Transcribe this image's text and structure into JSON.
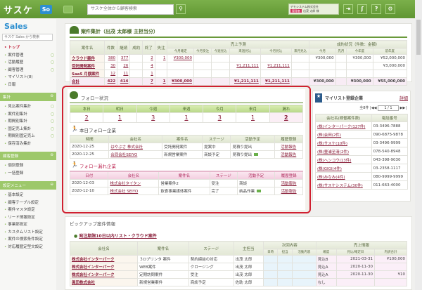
{
  "header": {
    "logo": "サスケ",
    "app_badge": "So",
    "search_placeholder": "サスケ全体から顧客検索",
    "company": "デモシステム株式会社",
    "role_badge": "管理者",
    "user": "出茂 太郎 様",
    "icons": [
      "chat-icon",
      "search-icon",
      "logout-icon",
      "sasuke-icon",
      "help-icon",
      "gear-icon"
    ],
    "help": "?",
    "brand": "#6a9e3a"
  },
  "sidebar": {
    "logo": "Sales",
    "logo_sub": "サスケ セールス",
    "search_placeholder": "サスケ Sales から検索",
    "main_items": [
      {
        "label": "トップ",
        "active": true
      },
      {
        "label": "案件管理",
        "plus": true
      },
      {
        "label": "活動履歴",
        "plus": true
      },
      {
        "label": "顧客管理",
        "plus": true
      },
      {
        "label": "マイリスト(8)"
      },
      {
        "label": "日報"
      }
    ],
    "sections": [
      {
        "title": "集計",
        "items": [
          "見込案件集計",
          "案件別集計",
          "期間別集計",
          "固定売上集計",
          "期間別固定売上",
          "保存済み集計"
        ],
        "plus": [
          true,
          true,
          true,
          true,
          true,
          false
        ]
      },
      {
        "title": "顧客登録",
        "items": [
          "個別登録",
          "一括登録"
        ],
        "plus": [
          false,
          false
        ]
      },
      {
        "title": "設定メニュー",
        "items": [
          "基本設定",
          "顧客テーブル設定",
          "案件マスタ設定",
          "リード情報設定",
          "事業部設定",
          "カスタムリスト設定",
          "案件の検索条件設定",
          "対応履歴定型文設定"
        ],
        "plus": [
          false,
          false,
          false,
          false,
          false,
          false,
          false,
          false
        ]
      }
    ]
  },
  "summary": {
    "title": "案件集計（出茂 太郎様 主担当分）",
    "headers": [
      "案件名",
      "件数",
      "継続",
      "成約",
      "終了",
      "失注"
    ],
    "group_forecast": "売上予測",
    "group_result": "成約状況（件数：金額）",
    "sub_headers": [
      "今月確定",
      "今月受注",
      "今週見込",
      "来週見込",
      "今月見込",
      "来月見込",
      "今月",
      "先月",
      "今年度",
      "前年度"
    ],
    "rows": [
      [
        "クラウド案件",
        "380",
        "377",
        "",
        "2",
        "1",
        "¥300,000",
        "",
        "",
        "",
        "",
        "",
        "¥300,000",
        "",
        "¥300,000",
        "¥52,000,000"
      ],
      [
        "受託開発案件",
        "30",
        "26",
        "",
        "4",
        "",
        "",
        "",
        "",
        "¥1,211,111",
        "¥1,211,111",
        "",
        "",
        "",
        "",
        "¥3,000,000"
      ],
      [
        "SaaS 月額案件",
        "12",
        "11",
        "",
        "1",
        "",
        "",
        "",
        "",
        "",
        "",
        "",
        "",
        "",
        "",
        ""
      ],
      [
        "合計",
        "422",
        "414",
        "",
        "7",
        "1",
        "¥300,000",
        "",
        "",
        "¥1,211,111",
        "¥1,211,111",
        "",
        "¥300,000",
        "",
        "¥300,000",
        "¥55,000,000"
      ]
    ]
  },
  "follow": {
    "title": "フォロー状況",
    "periods": [
      "本日",
      "明日",
      "今週",
      "来週",
      "今月",
      "来月",
      "漏れ"
    ],
    "counts": [
      "2",
      "1",
      "3",
      "1",
      "3",
      "1",
      "2"
    ],
    "today": {
      "title": "本日フォロー企業",
      "headers": [
        "時間",
        "会社名",
        "案件名",
        "ステージ",
        "活動予定",
        "履歴登録"
      ],
      "rows": [
        [
          "2020-12-25",
          "はやぶさ 株式会社",
          "受託開発案件",
          "提案中",
          "見積り提出",
          "活動報告"
        ],
        [
          "2020-12-25",
          "合同会社SEIYO",
          "新規営業案件",
          "商談予定",
          "見積り提出",
          "活動報告"
        ]
      ]
    },
    "missed": {
      "title": "フォロー漏れ企業",
      "headers": [
        "日付",
        "会社名",
        "案件名",
        "ステージ",
        "活動予定",
        "履歴登録"
      ],
      "rows": [
        [
          "2020-12-03",
          "株式会社タイタン",
          "営業案件2",
          "受注",
          "商談",
          "活動報告"
        ],
        [
          "2020-12-10",
          "株式会社 SEIYO",
          "飲食事業媒体案件",
          "完了",
          "納品作業",
          "活動報告"
        ]
      ]
    }
  },
  "mylist": {
    "title": "マイリスト登録企業",
    "detail": "詳細",
    "total": "全8件",
    "page": "1 / 1",
    "headers": [
      "会社名(稼働案件数)",
      "電話番号"
    ],
    "rows": [
      [
        "(株)インターパーク(127件)",
        "03-3496-7888"
      ],
      [
        "(株)会田(2件)",
        "090-6875-9878"
      ],
      [
        "(株)サスケ(10件)",
        "03-3496-9999"
      ],
      [
        "(株)豊浦至清(2件)",
        "078-540-8948"
      ],
      [
        "(株)ヘンコウ(13件)",
        "043-398-9030"
      ],
      [
        "(株)GIGI(4件)",
        "03-2358-1117"
      ],
      [
        "(株)みなみ(4件)",
        "080-9999-9999"
      ],
      [
        "(株)サスケシステム(30件)",
        "011-663-4000"
      ]
    ]
  },
  "pickup": {
    "title": "ピックアップ案件情報",
    "list_title": "発注期限10日以内リスト・クラウド案件",
    "headers": [
      "会社名",
      "案件名",
      "ステージ",
      "主担当"
    ],
    "group_next": "次回内容",
    "next_headers": [
      "日時",
      "担当",
      "活動内容"
    ],
    "group_sales": "売上情報",
    "sales_headers": [
      "確度",
      "見込/確定日",
      "内訳合計"
    ],
    "rows": [
      [
        "株式会社インターパーク",
        "３Dプリンタ 案件",
        "契約締結の対応",
        "出茂 太郎",
        "",
        "",
        "",
        "見込B",
        "2021-03-31",
        "¥100,000"
      ],
      [
        "株式会社インターパーク",
        "WEB案件",
        "クロージング",
        "出茂 太郎",
        "",
        "",
        "",
        "見込A",
        "2020-11-30",
        ""
      ],
      [
        "株式会社インターパーク",
        "定期訪問案件",
        "受注",
        "出茂 太郎",
        "",
        "",
        "",
        "見込A",
        "2020-11-30",
        "¥10"
      ],
      [
        "眞田株式会社",
        "新規営業案件",
        "商談予定",
        "佐助 太郎",
        "",
        "",
        "",
        "なし",
        "",
        ""
      ]
    ]
  }
}
